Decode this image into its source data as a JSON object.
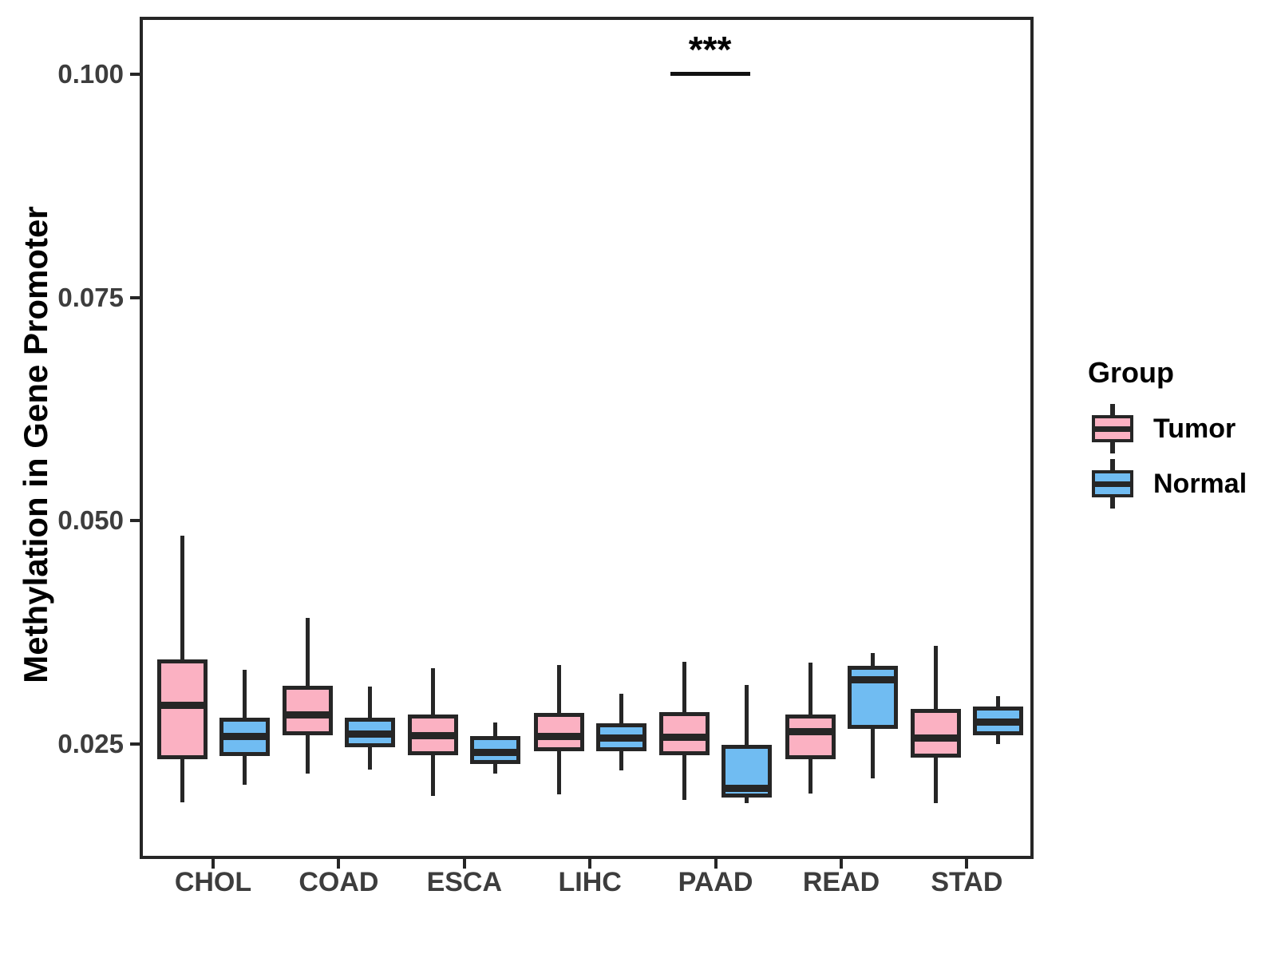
{
  "chart_data": {
    "type": "boxplot",
    "title": "",
    "xlabel": "",
    "ylabel": "Methylation in Gene Promoter",
    "categories": [
      "CHOL",
      "COAD",
      "ESCA",
      "LIHC",
      "PAAD",
      "READ",
      "STAD"
    ],
    "y_ticks": [
      {
        "value": 0.025,
        "label": "0.025"
      },
      {
        "value": 0.05,
        "label": "0.050"
      },
      {
        "value": 0.075,
        "label": "0.075"
      },
      {
        "value": 0.1,
        "label": "0.100"
      }
    ],
    "ylim": [
      0.012,
      0.106
    ],
    "grid": "off",
    "legend": {
      "title": "Group",
      "position": "right",
      "entries": [
        {
          "label": "Tumor",
          "fill": "#FBB1C2"
        },
        {
          "label": "Normal",
          "fill": "#70BCF2"
        }
      ]
    },
    "series": [
      {
        "name": "Tumor",
        "fill": "#FBB1C2",
        "boxes": [
          {
            "category": "CHOL",
            "whisker_low": 0.0186,
            "q1": 0.0235,
            "median": 0.0293,
            "q3": 0.0342,
            "whisker_high": 0.0481
          },
          {
            "category": "COAD",
            "whisker_low": 0.0218,
            "q1": 0.0262,
            "median": 0.0282,
            "q3": 0.0313,
            "whisker_high": 0.0389
          },
          {
            "category": "ESCA",
            "whisker_low": 0.0193,
            "q1": 0.0239,
            "median": 0.0259,
            "q3": 0.028,
            "whisker_high": 0.0333
          },
          {
            "category": "LIHC",
            "whisker_low": 0.0195,
            "q1": 0.0244,
            "median": 0.0258,
            "q3": 0.0282,
            "whisker_high": 0.0336
          },
          {
            "category": "PAAD",
            "whisker_low": 0.0189,
            "q1": 0.0239,
            "median": 0.0257,
            "q3": 0.0283,
            "whisker_high": 0.034
          },
          {
            "category": "READ",
            "whisker_low": 0.0196,
            "q1": 0.0235,
            "median": 0.0263,
            "q3": 0.028,
            "whisker_high": 0.0339
          },
          {
            "category": "STAD",
            "whisker_low": 0.0185,
            "q1": 0.0237,
            "median": 0.0256,
            "q3": 0.0287,
            "whisker_high": 0.0358
          }
        ]
      },
      {
        "name": "Normal",
        "fill": "#70BCF2",
        "boxes": [
          {
            "category": "CHOL",
            "whisker_low": 0.0206,
            "q1": 0.0238,
            "median": 0.0258,
            "q3": 0.0277,
            "whisker_high": 0.0331
          },
          {
            "category": "COAD",
            "whisker_low": 0.0223,
            "q1": 0.0248,
            "median": 0.0261,
            "q3": 0.0277,
            "whisker_high": 0.0312
          },
          {
            "category": "ESCA",
            "whisker_low": 0.0218,
            "q1": 0.0229,
            "median": 0.024,
            "q3": 0.0256,
            "whisker_high": 0.0272
          },
          {
            "category": "LIHC",
            "whisker_low": 0.0222,
            "q1": 0.0244,
            "median": 0.0256,
            "q3": 0.0271,
            "whisker_high": 0.0304
          },
          {
            "category": "PAAD",
            "whisker_low": 0.0185,
            "q1": 0.0192,
            "median": 0.02,
            "q3": 0.0246,
            "whisker_high": 0.0314
          },
          {
            "category": "READ",
            "whisker_low": 0.0213,
            "q1": 0.0269,
            "median": 0.0322,
            "q3": 0.0335,
            "whisker_high": 0.035
          },
          {
            "category": "STAD",
            "whisker_low": 0.0251,
            "q1": 0.0262,
            "median": 0.0274,
            "q3": 0.0289,
            "whisker_high": 0.0301
          }
        ]
      }
    ],
    "annotation": {
      "text": "***",
      "category": "PAAD"
    }
  },
  "colors": {
    "panel_border": "#262626",
    "box_outline": "#262626",
    "axis_text": "#3D3D3D",
    "annotation_text": "#000000"
  }
}
